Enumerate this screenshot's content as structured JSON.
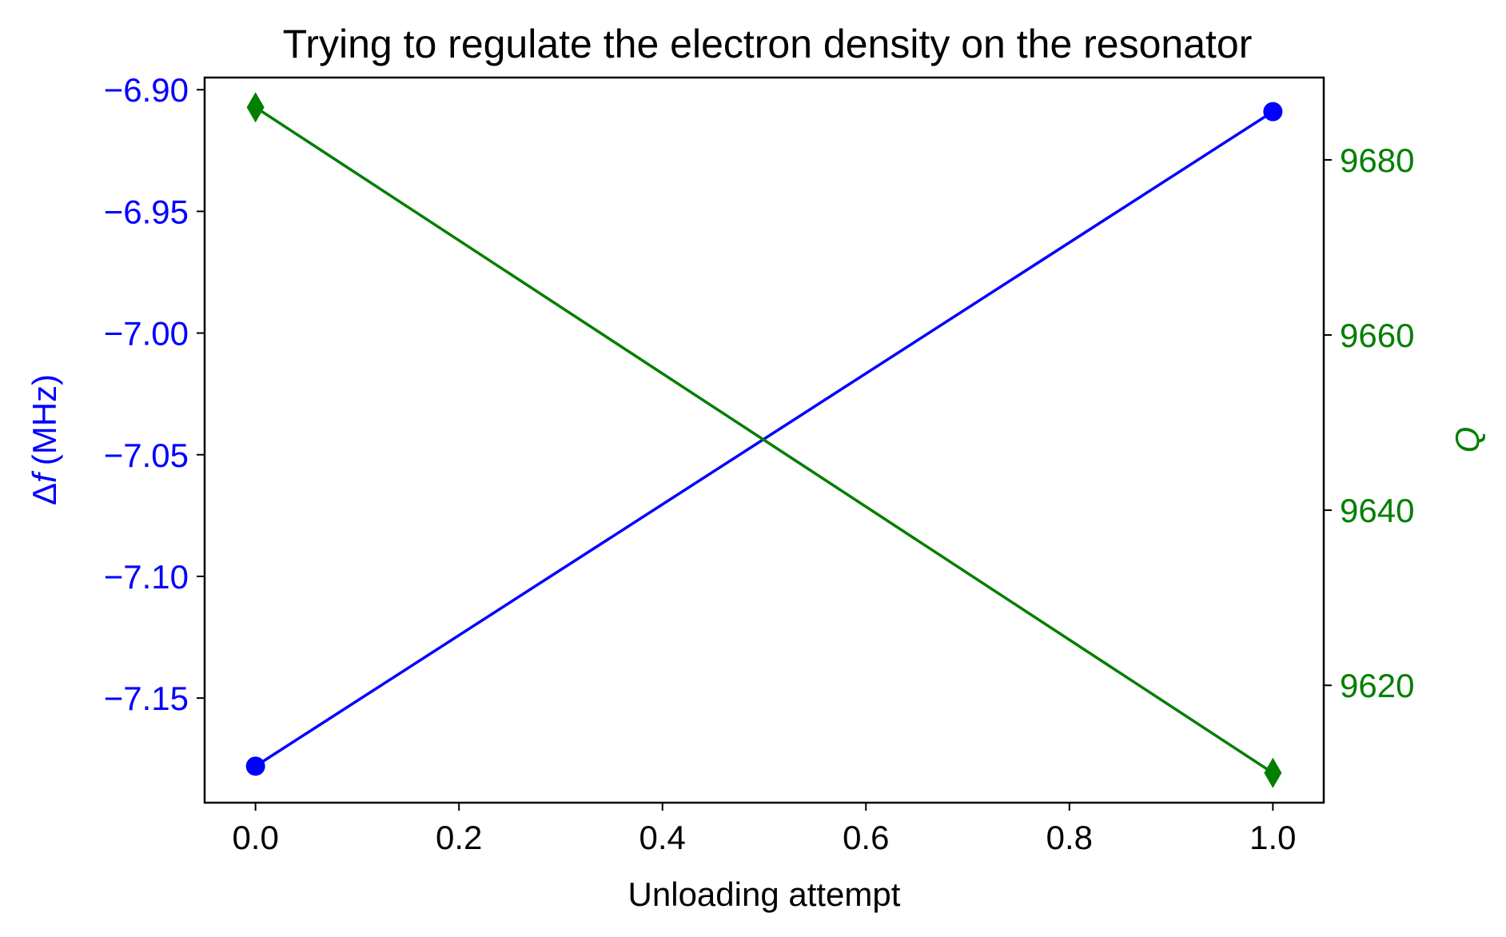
{
  "chart_data": {
    "type": "line",
    "title": "Trying to regulate the electron density on the resonator",
    "xlabel": "Unloading attempt",
    "ylabel_left": {
      "prefix": "Δ",
      "symbol": "f",
      "unit": "(MHz)"
    },
    "ylabel_right": "Q",
    "xlim": [
      -0.05,
      1.05
    ],
    "xticks": [
      0.0,
      0.2,
      0.4,
      0.6,
      0.8,
      1.0
    ],
    "xtick_labels": [
      "0.0",
      "0.2",
      "0.4",
      "0.6",
      "0.8",
      "1.0"
    ],
    "ylim_left": [
      -7.193,
      -6.895
    ],
    "yticks_left": [
      -6.9,
      -6.95,
      -7.0,
      -7.05,
      -7.1,
      -7.15
    ],
    "ytick_labels_left": [
      "−6.90",
      "−6.95",
      "−7.00",
      "−7.05",
      "−7.10",
      "−7.15"
    ],
    "ylim_right": [
      9606.6,
      9689.4
    ],
    "yticks_right": [
      9620,
      9640,
      9660,
      9680
    ],
    "ytick_labels_right": [
      "9620",
      "9640",
      "9660",
      "9680"
    ],
    "grid": false,
    "series": [
      {
        "axis": "left",
        "x": [
          0,
          1
        ],
        "values": [
          -7.178,
          -6.909
        ],
        "color": "#0000ff",
        "marker": "circle"
      },
      {
        "axis": "right",
        "x": [
          0,
          1
        ],
        "values": [
          9686,
          9610
        ],
        "color": "#007f00",
        "marker": "diamond"
      }
    ]
  }
}
